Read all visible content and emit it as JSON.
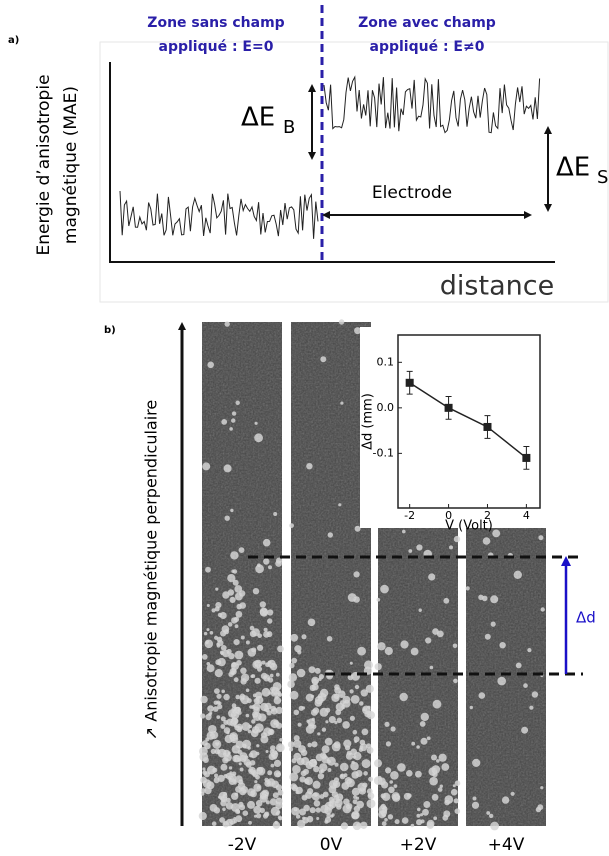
{
  "panel_a": {
    "label": "a)",
    "zone_left": [
      "Zone sans champ",
      "appliqué : E=0"
    ],
    "zone_right": [
      "Zone avec champ",
      "appliqué : E≠0"
    ],
    "y_axis": [
      "Energie d’anisotropie",
      "magnétique (MAE)"
    ],
    "delta_eb": {
      "symbol": "ΔE",
      "subscript": "B"
    },
    "delta_es": {
      "symbol": "ΔE",
      "subscript": "S"
    },
    "electrode": "Electrode",
    "x_axis": "distance"
  },
  "panel_b": {
    "label": "b)",
    "y_axis": "↗ Anisotropie magnétique perpendiculaire",
    "delta_d": "Δd",
    "images": [
      "-2V",
      "0V",
      "+2V",
      "+4V"
    ]
  },
  "chart_data": {
    "type": "line",
    "x_label": "V (Volt)",
    "y_label": "Δd (mm)",
    "x": [
      -2,
      0,
      2,
      4
    ],
    "series": [
      {
        "values": [
          0.055,
          0,
          -0.042,
          -0.11
        ],
        "errors": [
          0.025,
          0.025,
          0.025,
          0.025
        ],
        "color": "#222222"
      }
    ],
    "xlim": [
      -2.6,
      4.7
    ],
    "ylim": [
      -0.22,
      0.16
    ],
    "xticks": [
      -2,
      0,
      2,
      4
    ],
    "yticks": [
      0.1,
      {
        "value": 0,
        "label": "0.0"
      },
      -0.1
    ]
  }
}
